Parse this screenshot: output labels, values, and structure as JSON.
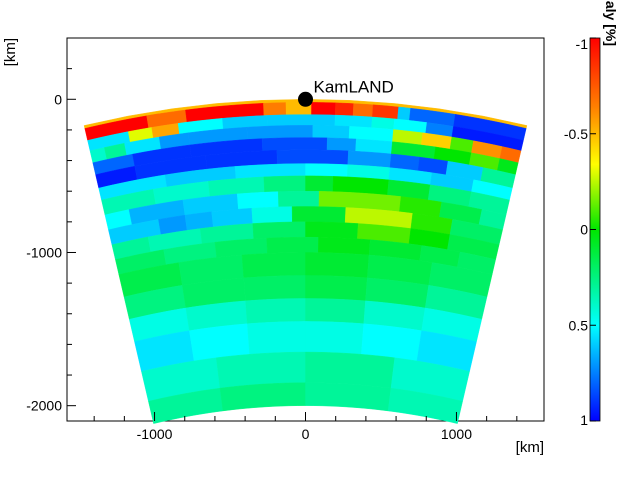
{
  "chart_data": {
    "type": "heatmap",
    "title": "",
    "xlabel": "[km]",
    "ylabel": "[km]",
    "xlim": [
      -1580,
      1580
    ],
    "ylim": [
      -2100,
      400
    ],
    "x_ticks": [
      -1000,
      0,
      1000
    ],
    "x_tick_labels": [
      "-1000",
      "0",
      "1000"
    ],
    "y_ticks": [
      -2000,
      -1000,
      0
    ],
    "y_tick_labels": [
      "-2000",
      "-1000",
      "0"
    ],
    "earth_radius_km": 6371,
    "section_half_width_km": 1480,
    "colorbar": {
      "title": "Seismic Wave Speed Anomaly [%]",
      "range": [
        -1,
        1
      ],
      "direction": "top -1 (red) to bottom 1 (blue)",
      "ticks": [
        -1,
        -0.5,
        0,
        0.5,
        1
      ],
      "tick_labels": [
        "-1",
        "-0.5",
        "0",
        "0.5",
        "1"
      ]
    },
    "marker": {
      "label": "KamLAND",
      "x": 0,
      "y": 0
    },
    "layers": [
      {
        "depth": [
          0,
          20
        ],
        "cells": [
          [
            -1480,
            1480,
            -0.5
          ]
        ]
      },
      {
        "depth": [
          20,
          100
        ],
        "cells": [
          [
            -1480,
            -1060,
            -1.0
          ],
          [
            -1060,
            -980,
            -0.7
          ],
          [
            -1060,
            -800,
            -0.7
          ],
          [
            -800,
            -280,
            -1.0
          ],
          [
            -280,
            -130,
            -0.65
          ],
          [
            -130,
            40,
            -0.5
          ],
          [
            40,
            200,
            -1.0
          ],
          [
            200,
            320,
            -0.9
          ],
          [
            320,
            450,
            -0.7
          ],
          [
            450,
            620,
            -0.85
          ],
          [
            620,
            700,
            0.6
          ],
          [
            700,
            1000,
            0.8
          ],
          [
            1000,
            1480,
            0.9
          ]
        ]
      },
      {
        "depth": [
          100,
          170
        ],
        "cells": [
          [
            -1480,
            -1200,
            0.55
          ],
          [
            -1200,
            -1040,
            -0.3
          ],
          [
            -1040,
            -860,
            -0.55
          ],
          [
            -860,
            -560,
            0.5
          ],
          [
            -560,
            -260,
            0.6
          ],
          [
            -260,
            200,
            0.6
          ],
          [
            200,
            450,
            0.55
          ],
          [
            450,
            600,
            0.45
          ],
          [
            600,
            820,
            0.5
          ],
          [
            820,
            1000,
            0.75
          ],
          [
            1000,
            1480,
            0.95
          ]
        ]
      },
      {
        "depth": [
          170,
          250
        ],
        "cells": [
          [
            -1480,
            -1380,
            0.4
          ],
          [
            -1380,
            -1240,
            0.3
          ],
          [
            -1240,
            -1000,
            0.55
          ],
          [
            -1000,
            -800,
            0.7
          ],
          [
            -800,
            -400,
            0.7
          ],
          [
            -400,
            50,
            0.7
          ],
          [
            50,
            300,
            0.6
          ],
          [
            300,
            600,
            0.5
          ],
          [
            600,
            800,
            -0.25
          ],
          [
            800,
            1000,
            -0.45
          ],
          [
            1000,
            1150,
            -0.1
          ],
          [
            1150,
            1350,
            -0.6
          ],
          [
            1350,
            1480,
            -0.7
          ]
        ]
      },
      {
        "depth": [
          250,
          330
        ],
        "cells": [
          [
            -1480,
            -1200,
            0.8
          ],
          [
            -1200,
            -800,
            0.9
          ],
          [
            -800,
            -300,
            0.9
          ],
          [
            -300,
            150,
            0.85
          ],
          [
            150,
            350,
            0.7
          ],
          [
            350,
            600,
            0.55
          ],
          [
            600,
            900,
            0.1
          ],
          [
            900,
            1150,
            0.0
          ],
          [
            1150,
            1350,
            -0.1
          ],
          [
            1350,
            1480,
            0.05
          ]
        ]
      },
      {
        "depth": [
          330,
          420
        ],
        "cells": [
          [
            -1480,
            -1200,
            0.95
          ],
          [
            -1200,
            -700,
            0.9
          ],
          [
            -700,
            -200,
            0.9
          ],
          [
            -200,
            300,
            0.85
          ],
          [
            300,
            600,
            0.7
          ],
          [
            600,
            800,
            0.8
          ],
          [
            800,
            1000,
            0.85
          ],
          [
            1000,
            1250,
            0.6
          ],
          [
            1250,
            1480,
            0.3
          ]
        ]
      },
      {
        "depth": [
          420,
          500
        ],
        "cells": [
          [
            -1480,
            -1000,
            0.55
          ],
          [
            -1000,
            -500,
            0.6
          ],
          [
            -500,
            0,
            0.55
          ],
          [
            0,
            300,
            0.5
          ],
          [
            300,
            600,
            0.45
          ],
          [
            600,
            900,
            0.55
          ],
          [
            900,
            1200,
            0.6
          ],
          [
            1200,
            1480,
            0.5
          ]
        ]
      },
      {
        "depth": [
          500,
          600
        ],
        "cells": [
          [
            -1480,
            -1100,
            0.35
          ],
          [
            -1100,
            -700,
            0.4
          ],
          [
            -700,
            -300,
            0.35
          ],
          [
            -300,
            0,
            0.25
          ],
          [
            0,
            200,
            0.1
          ],
          [
            200,
            600,
            0.0
          ],
          [
            600,
            900,
            0.1
          ],
          [
            900,
            1200,
            0.25
          ],
          [
            1200,
            1480,
            0.3
          ]
        ]
      },
      {
        "depth": [
          600,
          700
        ],
        "cells": [
          [
            -1480,
            -1300,
            0.5
          ],
          [
            -1300,
            -900,
            0.65
          ],
          [
            -900,
            -500,
            0.6
          ],
          [
            -500,
            -200,
            0.5
          ],
          [
            -200,
            100,
            0.3
          ],
          [
            100,
            700,
            -0.15
          ],
          [
            700,
            1000,
            -0.05
          ],
          [
            1000,
            1300,
            0.15
          ],
          [
            1300,
            1480,
            0.3
          ]
        ]
      },
      {
        "depth": [
          700,
          800
        ],
        "cells": [
          [
            -1480,
            -1100,
            0.6
          ],
          [
            -1100,
            -900,
            0.7
          ],
          [
            -900,
            -700,
            0.65
          ],
          [
            -700,
            -400,
            0.6
          ],
          [
            -400,
            -100,
            0.45
          ],
          [
            -100,
            300,
            0.1
          ],
          [
            300,
            800,
            -0.25
          ],
          [
            800,
            1100,
            -0.05
          ],
          [
            1100,
            1480,
            0.2
          ]
        ]
      },
      {
        "depth": [
          800,
          900
        ],
        "cells": [
          [
            -1480,
            -1200,
            0.3
          ],
          [
            -1200,
            -800,
            0.35
          ],
          [
            -800,
            -400,
            0.3
          ],
          [
            -400,
            0,
            0.2
          ],
          [
            0,
            400,
            0.05
          ],
          [
            400,
            800,
            -0.1
          ],
          [
            800,
            1100,
            0.0
          ],
          [
            1100,
            1480,
            0.15
          ]
        ]
      },
      {
        "depth": [
          900,
          1000
        ],
        "cells": [
          [
            -1480,
            -1100,
            0.2
          ],
          [
            -1100,
            -700,
            0.25
          ],
          [
            -700,
            -300,
            0.2
          ],
          [
            -300,
            100,
            0.15
          ],
          [
            100,
            500,
            0.05
          ],
          [
            500,
            900,
            0.1
          ],
          [
            900,
            1200,
            0.15
          ],
          [
            1200,
            1480,
            0.2
          ]
        ]
      },
      {
        "depth": [
          1000,
          1150
        ],
        "cells": [
          [
            -1480,
            -1000,
            0.15
          ],
          [
            -1000,
            -500,
            0.2
          ],
          [
            -500,
            0,
            0.15
          ],
          [
            0,
            500,
            0.1
          ],
          [
            500,
            1000,
            0.15
          ],
          [
            1000,
            1480,
            0.2
          ]
        ]
      },
      {
        "depth": [
          1150,
          1300
        ],
        "cells": [
          [
            -1480,
            -1000,
            0.25
          ],
          [
            -1000,
            -500,
            0.2
          ],
          [
            -500,
            0,
            0.2
          ],
          [
            0,
            500,
            0.15
          ],
          [
            500,
            1000,
            0.2
          ],
          [
            1000,
            1480,
            0.3
          ]
        ]
      },
      {
        "depth": [
          1300,
          1450
        ],
        "cells": [
          [
            -1480,
            -1000,
            0.45
          ],
          [
            -1000,
            -500,
            0.4
          ],
          [
            -500,
            0,
            0.35
          ],
          [
            0,
            500,
            0.3
          ],
          [
            500,
            1000,
            0.4
          ],
          [
            1000,
            1480,
            0.45
          ]
        ]
      },
      {
        "depth": [
          1450,
          1650
        ],
        "cells": [
          [
            -1480,
            -1000,
            0.55
          ],
          [
            -1000,
            -500,
            0.5
          ],
          [
            -500,
            0,
            0.45
          ],
          [
            0,
            500,
            0.45
          ],
          [
            500,
            1000,
            0.5
          ],
          [
            1000,
            1480,
            0.55
          ]
        ]
      },
      {
        "depth": [
          1650,
          1850
        ],
        "cells": [
          [
            -1480,
            -800,
            0.4
          ],
          [
            -800,
            0,
            0.35
          ],
          [
            0,
            800,
            0.3
          ],
          [
            800,
            1480,
            0.4
          ]
        ]
      },
      {
        "depth": [
          1850,
          2000
        ],
        "cells": [
          [
            -1480,
            -800,
            0.3
          ],
          [
            -800,
            0,
            0.25
          ],
          [
            0,
            800,
            0.3
          ],
          [
            800,
            1480,
            0.35
          ]
        ]
      }
    ]
  }
}
